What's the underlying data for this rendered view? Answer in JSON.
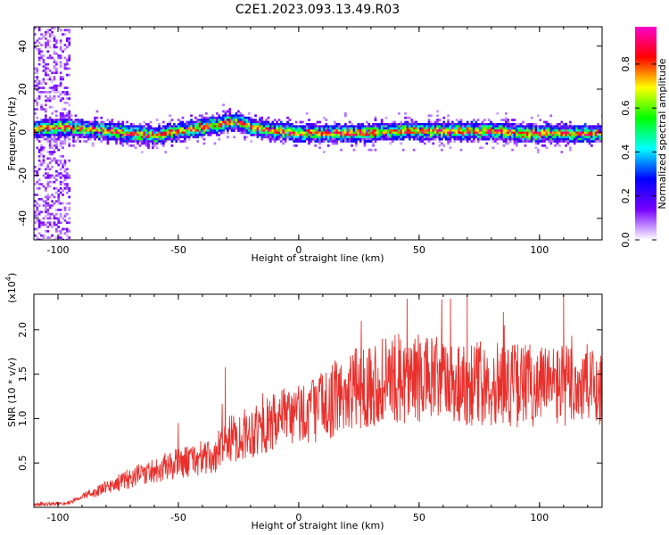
{
  "title": "C2E1.2023.093.13.49.R03",
  "chart_data": [
    {
      "type": "heatmap",
      "xlabel": "Height of straight line (km)",
      "ylabel": "Frequency (Hz)",
      "xlim": [
        -110,
        126
      ],
      "ylim": [
        -50,
        49
      ],
      "xticks": [
        "-100",
        "-50",
        "0",
        "50",
        "100"
      ],
      "xtick_values": [
        -100,
        -50,
        0,
        50,
        100
      ],
      "yticks": [
        "-40",
        "-20",
        "0",
        "20",
        "40"
      ],
      "ytick_values": [
        -40,
        -20,
        0,
        20,
        40
      ],
      "ridge": {
        "x": [
          -110,
          -100,
          -90,
          -80,
          -70,
          -60,
          -50,
          -40,
          -35,
          -30,
          -25,
          -20,
          -15,
          -10,
          -5,
          0,
          10,
          20,
          30,
          40,
          50,
          60,
          70,
          80,
          90,
          100,
          110,
          126
        ],
        "freq": [
          2,
          3,
          2,
          1,
          0,
          -1,
          1,
          3,
          4,
          5,
          5,
          3,
          2,
          1,
          1,
          0,
          0,
          0,
          0,
          1,
          1,
          1,
          1,
          1,
          0,
          0,
          0,
          0
        ]
      },
      "colorbar": {
        "label": "Normalized spectral amplitude",
        "range": [
          0,
          0.97
        ],
        "ticks": [
          "0.0",
          "0.2",
          "0.4",
          "0.6",
          "0.8"
        ],
        "tick_values": [
          0,
          0.2,
          0.4,
          0.6,
          0.8
        ],
        "colors": [
          "#ffffff",
          "#7700ff",
          "#0000ff",
          "#00ffff",
          "#00ff00",
          "#ffff00",
          "#ff0000",
          "#ff00cc"
        ]
      }
    },
    {
      "type": "line",
      "xlabel": "Height of straight line (km)",
      "ylabel": "SNR (10 * v/v)",
      "scale_label": "(x10",
      "scale_exp": "4",
      "scale_close": ")",
      "xlim": [
        -110,
        126
      ],
      "ylim": [
        0,
        2.4
      ],
      "xticks": [
        "-100",
        "-50",
        "0",
        "50",
        "100"
      ],
      "xtick_values": [
        -100,
        -50,
        0,
        50,
        100
      ],
      "yticks": [
        "0.5",
        "1.0",
        "1.5",
        "2.0"
      ],
      "ytick_values": [
        0.5,
        1.0,
        1.5,
        2.0
      ],
      "color": "#e8302c",
      "envelope": {
        "x": [
          -110,
          -95,
          -90,
          -80,
          -70,
          -60,
          -50,
          -40,
          -34,
          -33,
          -30,
          -20,
          -10,
          0,
          10,
          20,
          30,
          40,
          50,
          60,
          70,
          80,
          90,
          100,
          110,
          120,
          126
        ],
        "y": [
          0.03,
          0.05,
          0.12,
          0.22,
          0.33,
          0.42,
          0.5,
          0.55,
          0.55,
          0.72,
          0.75,
          0.85,
          0.95,
          1.05,
          1.15,
          1.3,
          1.4,
          1.45,
          1.45,
          1.42,
          1.4,
          1.4,
          1.38,
          1.38,
          1.37,
          1.37,
          1.37
        ]
      },
      "spikes": [
        {
          "x": -30.5,
          "y": 1.58
        },
        {
          "x": -50,
          "y": 0.95
        },
        {
          "x": 45,
          "y": 2.35
        },
        {
          "x": 63,
          "y": 2.35
        },
        {
          "x": 70,
          "y": 2.4
        },
        {
          "x": 110,
          "y": 2.4
        },
        {
          "x": 26,
          "y": 2.1
        },
        {
          "x": 85,
          "y": 2.2
        }
      ]
    }
  ]
}
